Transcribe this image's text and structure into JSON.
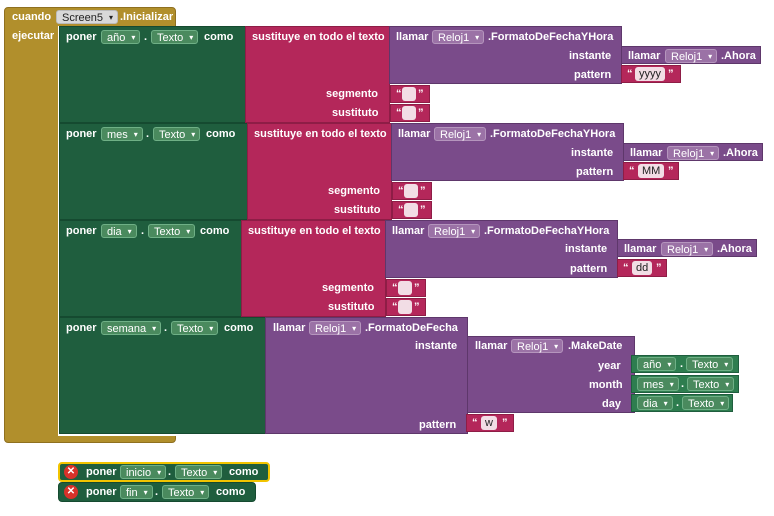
{
  "event": {
    "cuando": "cuando",
    "component": "Screen5",
    "method": ".Inicializar",
    "ejecutar": "ejecutar"
  },
  "words": {
    "poner": "poner",
    "como": "como",
    "punto": ".",
    "sustituye": "sustituye en todo el texto",
    "segmento": "segmento",
    "sustituto": "sustituto",
    "llamar": "llamar",
    "instante": "instante",
    "pattern": "pattern",
    "year": "year",
    "month": "month",
    "day": "day",
    "quote": "“",
    "quote_close": "”"
  },
  "rows": [
    {
      "var": "año",
      "prop": "Texto",
      "clock": "Reloj1",
      "method": ".FormatoDeFechaYHora",
      "inner_clock": "Reloj1",
      "inner_method": ".Ahora",
      "pattern": "yyyy"
    },
    {
      "var": "mes",
      "prop": "Texto",
      "clock": "Reloj1",
      "method": ".FormatoDeFechaYHora",
      "inner_clock": "Reloj1",
      "inner_method": ".Ahora",
      "pattern": "MM"
    },
    {
      "var": "dia",
      "prop": "Texto",
      "clock": "Reloj1",
      "method": ".FormatoDeFechaYHora",
      "inner_clock": "Reloj1",
      "inner_method": ".Ahora",
      "pattern": "dd"
    }
  ],
  "semana": {
    "var": "semana",
    "prop": "Texto",
    "clock": "Reloj1",
    "method": ".FormatoDeFecha",
    "make_clock": "Reloj1",
    "make_method": ".MakeDate",
    "year_var": "año",
    "month_var": "mes",
    "day_var": "dia",
    "sub_prop": "Texto",
    "pattern": "w"
  },
  "loose": [
    {
      "var": "inicio",
      "prop": "Texto"
    },
    {
      "var": "fin",
      "prop": "Texto"
    }
  ],
  "colors": {
    "event": "#b18f2c",
    "set": "#1f5e3e",
    "text": "#b4275a",
    "call": "#7a4b8a",
    "error": "#d8322a"
  }
}
